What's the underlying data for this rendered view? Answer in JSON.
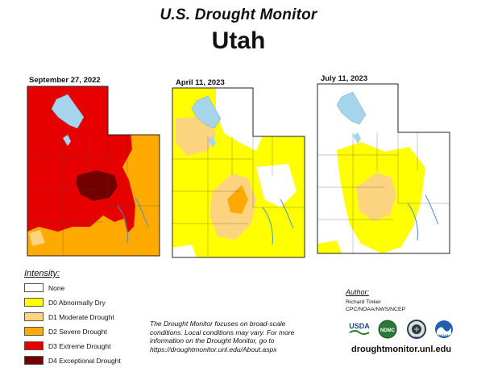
{
  "header": {
    "title": "U.S. Drought Monitor",
    "state": "Utah"
  },
  "maps": [
    {
      "date": "September 27, 2022"
    },
    {
      "date": "April 11, 2023"
    },
    {
      "date": "July 11, 2023"
    }
  ],
  "legend": {
    "title": "Intensity:",
    "items": [
      {
        "label": "None",
        "color": "#ffffff"
      },
      {
        "label": "D0 Abnormally Dry",
        "color": "#ffff00"
      },
      {
        "label": "D1 Moderate Drought",
        "color": "#fcd37f"
      },
      {
        "label": "D2 Severe Drought",
        "color": "#ffaa00"
      },
      {
        "label": "D3 Extreme Drought",
        "color": "#e60000"
      },
      {
        "label": "D4 Exceptional Drought",
        "color": "#730000"
      }
    ]
  },
  "disclaimer": "The Drought Monitor focuses on broad-scale conditions. Local conditions may vary. For more information on the Drought Monitor, go to https://droughtmonitor.unl.edu/About.aspx",
  "author": {
    "label": "Author:",
    "name": "Richard Tinker",
    "org": "CPC/NOAA/NWS/NCEP"
  },
  "logos": [
    "USDA",
    "NDMC",
    "DOC",
    "NOAA"
  ],
  "website": "droughtmonitor.unl.edu"
}
